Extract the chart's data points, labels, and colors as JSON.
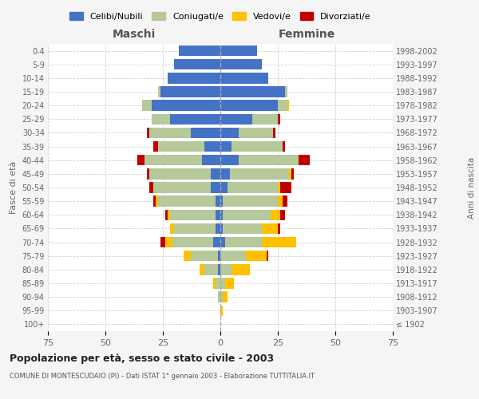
{
  "age_groups": [
    "100+",
    "95-99",
    "90-94",
    "85-89",
    "80-84",
    "75-79",
    "70-74",
    "65-69",
    "60-64",
    "55-59",
    "50-54",
    "45-49",
    "40-44",
    "35-39",
    "30-34",
    "25-29",
    "20-24",
    "15-19",
    "10-14",
    "5-9",
    "0-4"
  ],
  "birth_years": [
    "≤ 1902",
    "1903-1907",
    "1908-1912",
    "1913-1917",
    "1918-1922",
    "1923-1927",
    "1928-1932",
    "1933-1937",
    "1938-1942",
    "1943-1947",
    "1948-1952",
    "1953-1957",
    "1958-1962",
    "1963-1967",
    "1968-1972",
    "1973-1977",
    "1978-1982",
    "1983-1987",
    "1988-1992",
    "1993-1997",
    "1998-2002"
  ],
  "maschi": {
    "celibi": [
      0,
      0,
      0,
      0,
      1,
      1,
      3,
      2,
      2,
      2,
      4,
      4,
      8,
      7,
      13,
      22,
      30,
      26,
      23,
      20,
      18
    ],
    "coniugati": [
      0,
      0,
      1,
      2,
      6,
      12,
      18,
      18,
      20,
      25,
      25,
      27,
      25,
      20,
      18,
      8,
      4,
      1,
      0,
      0,
      0
    ],
    "vedovi": [
      0,
      0,
      0,
      1,
      2,
      3,
      3,
      2,
      1,
      1,
      0,
      0,
      0,
      0,
      0,
      0,
      0,
      0,
      0,
      0,
      0
    ],
    "divorziati": [
      0,
      0,
      0,
      0,
      0,
      0,
      2,
      0,
      1,
      1,
      2,
      1,
      3,
      2,
      1,
      0,
      0,
      0,
      0,
      0,
      0
    ]
  },
  "femmine": {
    "nubili": [
      0,
      0,
      0,
      0,
      0,
      0,
      2,
      1,
      1,
      1,
      3,
      4,
      8,
      5,
      8,
      14,
      25,
      28,
      21,
      18,
      16
    ],
    "coniugate": [
      0,
      0,
      1,
      2,
      5,
      11,
      16,
      17,
      21,
      24,
      22,
      26,
      26,
      22,
      15,
      11,
      4,
      1,
      0,
      0,
      0
    ],
    "vedove": [
      0,
      1,
      2,
      4,
      8,
      9,
      15,
      7,
      4,
      2,
      1,
      1,
      0,
      0,
      0,
      0,
      1,
      0,
      0,
      0,
      0
    ],
    "divorziate": [
      0,
      0,
      0,
      0,
      0,
      1,
      0,
      1,
      2,
      2,
      5,
      1,
      5,
      1,
      1,
      1,
      0,
      0,
      0,
      0,
      0
    ]
  },
  "colors": {
    "celibi_nubili": "#4472c4",
    "coniugati_e": "#b5c99a",
    "vedovi_e": "#ffc000",
    "divorziati_e": "#c00000"
  },
  "xlim": 75,
  "title": "Popolazione per età, sesso e stato civile - 2003",
  "subtitle": "COMUNE DI MONTESCUDAIO (PI) - Dati ISTAT 1° gennaio 2003 - Elaborazione TUTTITALIA.IT",
  "ylabel_left": "Fasce di età",
  "ylabel_right": "Anni di nascita",
  "xlabel_maschi": "Maschi",
  "xlabel_femmine": "Femmine",
  "legend_labels": [
    "Celibi/Nubili",
    "Coniugati/e",
    "Vedovi/e",
    "Divorziati/e"
  ],
  "background_color": "#f5f5f5",
  "plot_bg": "#ffffff",
  "grid_color": "#cccccc"
}
